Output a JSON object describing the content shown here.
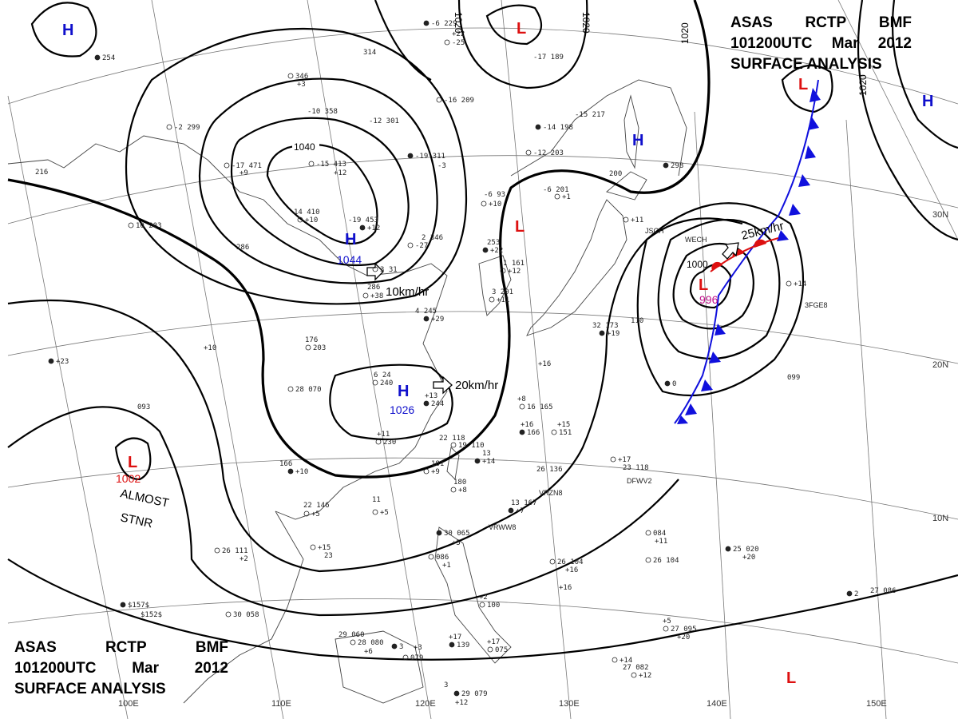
{
  "header_top": {
    "line1": [
      "ASAS",
      "RCTP",
      "BMF"
    ],
    "line2": [
      "101200UTC",
      "Mar",
      "2012"
    ],
    "line3": "SURFACE ANALYSIS"
  },
  "header_bottom": {
    "line1": [
      "ASAS",
      "RCTP",
      "BMF"
    ],
    "line2": [
      "101200UTC",
      "Mar",
      "2012"
    ],
    "line3": "SURFACE ANALYSIS"
  },
  "colors": {
    "high": "#1010cc",
    "low": "#dd1010",
    "low_value": "#c0108a",
    "cold_front": "#1010dd",
    "warm_front": "#dd1010",
    "isobar": "#000000",
    "grid": "#666666"
  },
  "longitude_labels": [
    "110E",
    "120E",
    "130E",
    "140E",
    "150E",
    "100E"
  ],
  "latitude_labels": [
    "30N",
    "20N",
    "10N"
  ],
  "pressure_centers": [
    {
      "type": "H",
      "value": ""
    },
    {
      "type": "H",
      "value": "1044"
    },
    {
      "type": "H",
      "value": "1026"
    },
    {
      "type": "H",
      "value": ""
    },
    {
      "type": "H",
      "value": ""
    },
    {
      "type": "L",
      "value": ""
    },
    {
      "type": "L",
      "value": ""
    },
    {
      "type": "L",
      "value": "996"
    },
    {
      "type": "L",
      "value": "1002"
    },
    {
      "type": "L",
      "value": ""
    },
    {
      "type": "L",
      "value": ""
    }
  ],
  "isobar_labels": [
    "1040",
    "1020",
    "1020",
    "1020",
    "1020",
    "1000"
  ],
  "motion_labels": [
    "10km/hr",
    "20km/hr",
    "25km/hr"
  ],
  "annotations": [
    "ALMOST",
    "STNR"
  ],
  "ship_ids": [
    "DFWV2",
    "VRZN8",
    "VRWW8",
    "3FGE8",
    "JSCH",
    "WECH"
  ],
  "station_plots": [
    "-6 229",
    "+22",
    "-25",
    "314",
    "346",
    "+3",
    "254",
    "-10 358",
    "-2 299",
    "-12 301",
    "-16 209",
    "-17 189",
    "-14 198",
    "-15 217",
    "-17 471",
    "+9",
    "-15 413",
    "+12",
    "-19 311",
    "-3",
    "-12 203",
    "-6 201",
    "+1",
    "200",
    "298",
    "216",
    "10 203",
    "14 410",
    "+10",
    "-19 453",
    "+12",
    "-6 93",
    "+10",
    "2 346",
    "-27",
    "253",
    "+22",
    "286",
    "3 31",
    "286",
    "+38",
    "4 245",
    "+29",
    "1 161",
    "+12",
    "3 201",
    "+11",
    "32 173",
    "+19",
    "110",
    "+11",
    "176",
    "203",
    "+10",
    "+23",
    "093",
    "28 070",
    "6 24",
    "240",
    "+13",
    "244",
    "+11",
    "230",
    "+8",
    "16 165",
    "+16",
    "166",
    "+15",
    "151",
    "+16",
    "+17",
    "23 118",
    "0",
    "099",
    "+14",
    "22 118",
    "19 110",
    "13",
    "+14",
    "181",
    "+9",
    "180",
    "+8",
    "166",
    "+10",
    "11",
    "+5",
    "22 146",
    "+5",
    "13 167",
    "+7",
    "26 136",
    "+15",
    "23",
    "26 111",
    "+2",
    "30 065",
    "+5",
    "086",
    "+1",
    "084",
    "+11",
    "25 020",
    "+20",
    "26 104",
    "+16",
    "26 104",
    "+16",
    "$157$",
    "$152$",
    "30 058",
    "29 060",
    "28 080",
    "+6",
    "3",
    "+3",
    "079",
    "+2",
    "100",
    "+17",
    "139",
    "+17",
    "075",
    "+5",
    "27 095",
    "+20",
    "2",
    "27 086",
    "+14",
    "27 082",
    "+12",
    "3",
    "29 079",
    "+12",
    "2"
  ]
}
